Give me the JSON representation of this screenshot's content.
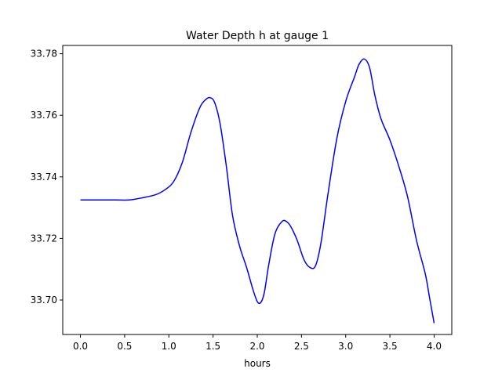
{
  "chart_data": {
    "type": "line",
    "title": "Water Depth h at gauge 1",
    "xlabel": "hours",
    "ylabel": "",
    "xlim": [
      -0.2,
      4.2
    ],
    "ylim": [
      33.6888,
      33.7827
    ],
    "xticks": [
      0.0,
      0.5,
      1.0,
      1.5,
      2.0,
      2.5,
      3.0,
      3.5,
      4.0
    ],
    "xtick_labels": [
      "0.0",
      "0.5",
      "1.0",
      "1.5",
      "2.0",
      "2.5",
      "3.0",
      "3.5",
      "4.0"
    ],
    "yticks": [
      33.7,
      33.72,
      33.74,
      33.76,
      33.78
    ],
    "ytick_labels": [
      "33.70",
      "33.72",
      "33.74",
      "33.76",
      "33.78"
    ],
    "grid": false,
    "series": [
      {
        "color": "#0000ff",
        "x": [
          0.0,
          0.2,
          0.4,
          0.55,
          0.7,
          0.85,
          0.95,
          1.05,
          1.15,
          1.25,
          1.35,
          1.42,
          1.47,
          1.52,
          1.58,
          1.65,
          1.72,
          1.8,
          1.88,
          1.95,
          2.0,
          2.04,
          2.08,
          2.13,
          2.2,
          2.28,
          2.33,
          2.38,
          2.45,
          2.53,
          2.6,
          2.66,
          2.72,
          2.8,
          2.9,
          3.0,
          3.1,
          3.15,
          3.21,
          3.27,
          3.33,
          3.4,
          3.5,
          3.6,
          3.7,
          3.8,
          3.9,
          3.95,
          4.0
        ],
        "y": [
          33.7325,
          33.7325,
          33.7325,
          33.7325,
          33.7332,
          33.7342,
          33.7357,
          33.7383,
          33.7445,
          33.7545,
          33.7625,
          33.7652,
          33.7657,
          33.764,
          33.7572,
          33.7435,
          33.7275,
          33.7175,
          33.7105,
          33.7035,
          33.6995,
          33.6992,
          33.7025,
          33.7115,
          33.7215,
          33.7255,
          33.7255,
          33.7238,
          33.7195,
          33.713,
          33.7105,
          33.7112,
          33.7185,
          33.7345,
          33.7525,
          33.7645,
          33.7725,
          33.7765,
          33.7783,
          33.7755,
          33.7665,
          33.7588,
          33.752,
          33.7435,
          33.7335,
          33.7195,
          33.7085,
          33.7005,
          33.6925
        ]
      }
    ]
  }
}
